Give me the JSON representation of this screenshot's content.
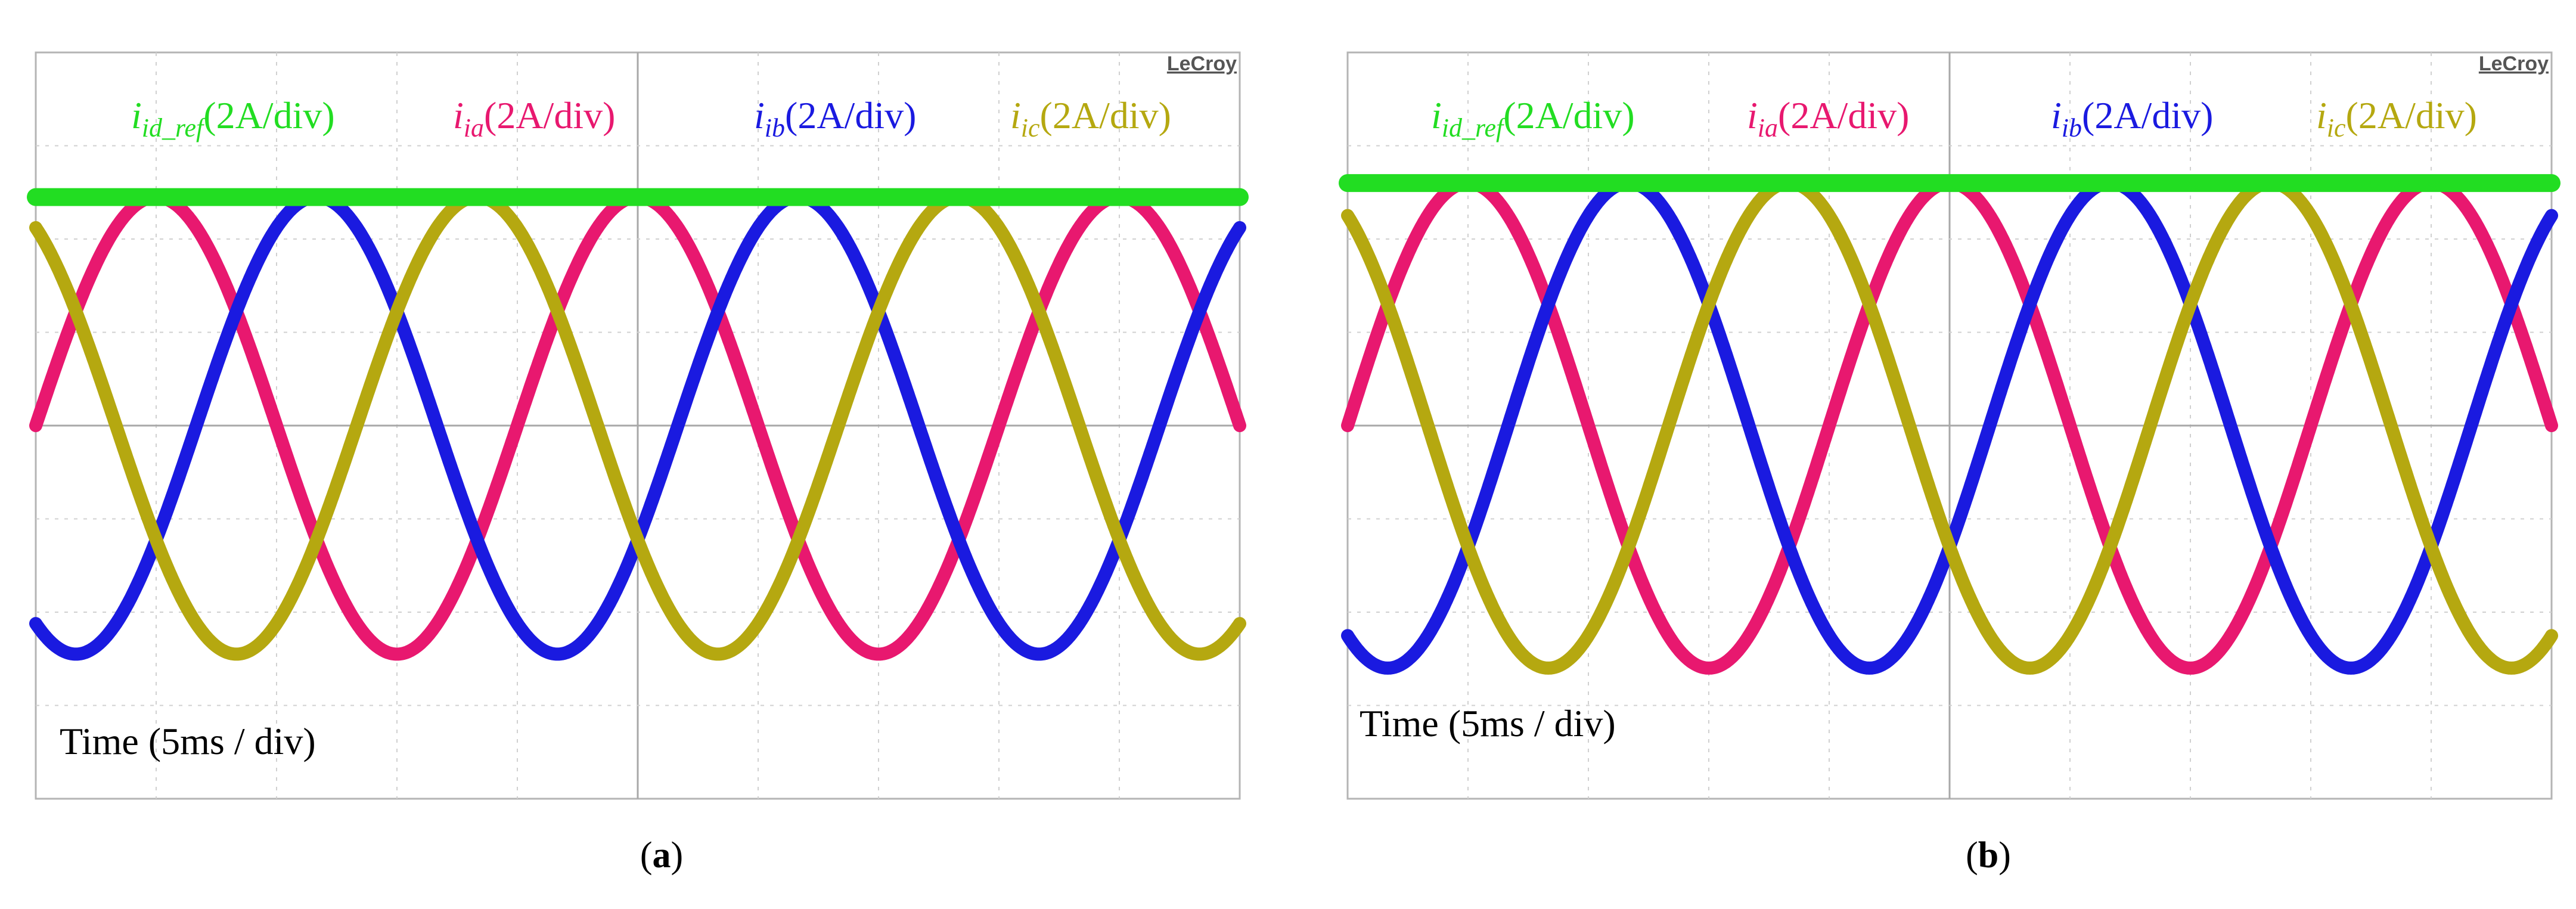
{
  "chart_data": [
    {
      "panel": "a",
      "type": "line",
      "brand": "LeCroy",
      "caption_open": "(",
      "caption_letter": "a",
      "caption_close": ")",
      "time_label": "Time (5ms / div)",
      "x_divisions": 10,
      "y_divisions": 8,
      "x_range_ms": [
        0,
        50
      ],
      "y_range_div": [
        -4,
        4
      ],
      "period_ms": 20,
      "series": [
        {
          "name": "i_id_ref",
          "label_main": "i",
          "label_sub": "id_ref",
          "label_scale": "(2A/div)",
          "color": "#22dd22",
          "kind": "dc",
          "level_div": 2.45
        },
        {
          "name": "i_ia",
          "label_main": "i",
          "label_sub": "ia",
          "label_scale": "(2A/div)",
          "color": "#e8186f",
          "kind": "sine",
          "amplitude_div": 2.45,
          "phase_deg": 0
        },
        {
          "name": "i_ib",
          "label_main": "i",
          "label_sub": "ib",
          "label_scale": "(2A/div)",
          "color": "#1a1ae0",
          "kind": "sine",
          "amplitude_div": 2.45,
          "phase_deg": -120
        },
        {
          "name": "i_ic",
          "label_main": "i",
          "label_sub": "ic",
          "label_scale": "(2A/div)",
          "color": "#b5a810",
          "kind": "sine",
          "amplitude_div": 2.45,
          "phase_deg": 120
        }
      ]
    },
    {
      "panel": "b",
      "type": "line",
      "brand": "LeCroy",
      "caption_open": "(",
      "caption_letter": "b",
      "caption_close": ")",
      "time_label": "Time (5ms / div)",
      "x_divisions": 10,
      "y_divisions": 8,
      "x_range_ms": [
        0,
        50
      ],
      "y_range_div": [
        -4,
        4
      ],
      "period_ms": 20,
      "series": [
        {
          "name": "i_id_ref",
          "label_main": "i",
          "label_sub": "id_ref",
          "label_scale": "(2A/div)",
          "color": "#22dd22",
          "kind": "dc",
          "level_div": 2.6
        },
        {
          "name": "i_ia",
          "label_main": "i",
          "label_sub": "ia",
          "label_scale": "(2A/div)",
          "color": "#e8186f",
          "kind": "sine",
          "amplitude_div": 2.6,
          "phase_deg": 0
        },
        {
          "name": "i_ib",
          "label_main": "i",
          "label_sub": "ib",
          "label_scale": "(2A/div)",
          "color": "#1a1ae0",
          "kind": "sine",
          "amplitude_div": 2.6,
          "phase_deg": -120
        },
        {
          "name": "i_ic",
          "label_main": "i",
          "label_sub": "ic",
          "label_scale": "(2A/div)",
          "color": "#b5a810",
          "kind": "sine",
          "amplitude_div": 2.6,
          "phase_deg": 120
        }
      ]
    }
  ]
}
